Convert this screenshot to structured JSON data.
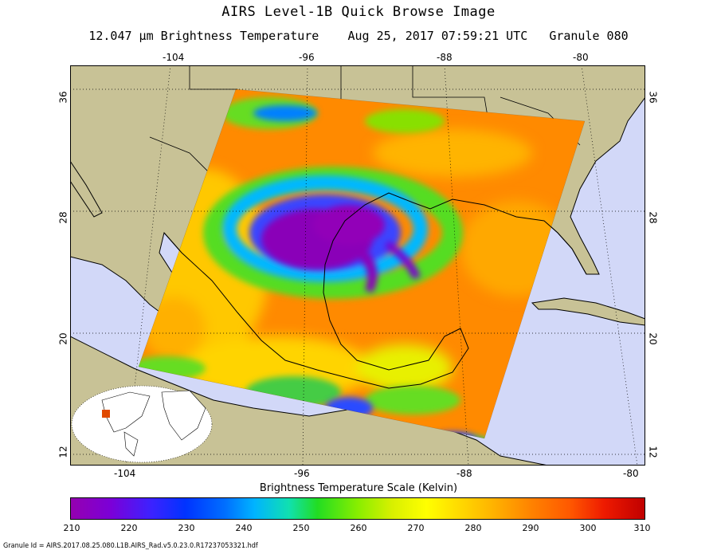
{
  "title": "AIRS Level-1B Quick Browse Image",
  "subtitle": "12.047 μm Brightness Temperature    Aug 25, 2017 07:59:21 UTC   Granule 080",
  "axes": {
    "top_longitudes": [
      "-104",
      "-96",
      "-88",
      "-80"
    ],
    "bottom_longitudes": [
      "-104",
      "-96",
      "-88",
      "-80"
    ],
    "left_latitudes": [
      "36",
      "28",
      "20",
      "12"
    ],
    "right_latitudes": [
      "36",
      "28",
      "20",
      "12"
    ]
  },
  "scale": {
    "title": "Brightness Temperature Scale (Kelvin)",
    "ticks": [
      "210",
      "220",
      "230",
      "240",
      "250",
      "260",
      "270",
      "280",
      "290",
      "300",
      "310"
    ],
    "min": 210,
    "max": 310
  },
  "granule_id": "Granule Id = AIRS.2017.08.25.080.L1B.AIRS_Rad.v5.0.23.0.R17237053321.hdf",
  "colors": {
    "land": "#c8c296",
    "ocean": "#d2d8f8",
    "storm_core": "#8a00b8",
    "warm_field": "#ff8a00"
  }
}
